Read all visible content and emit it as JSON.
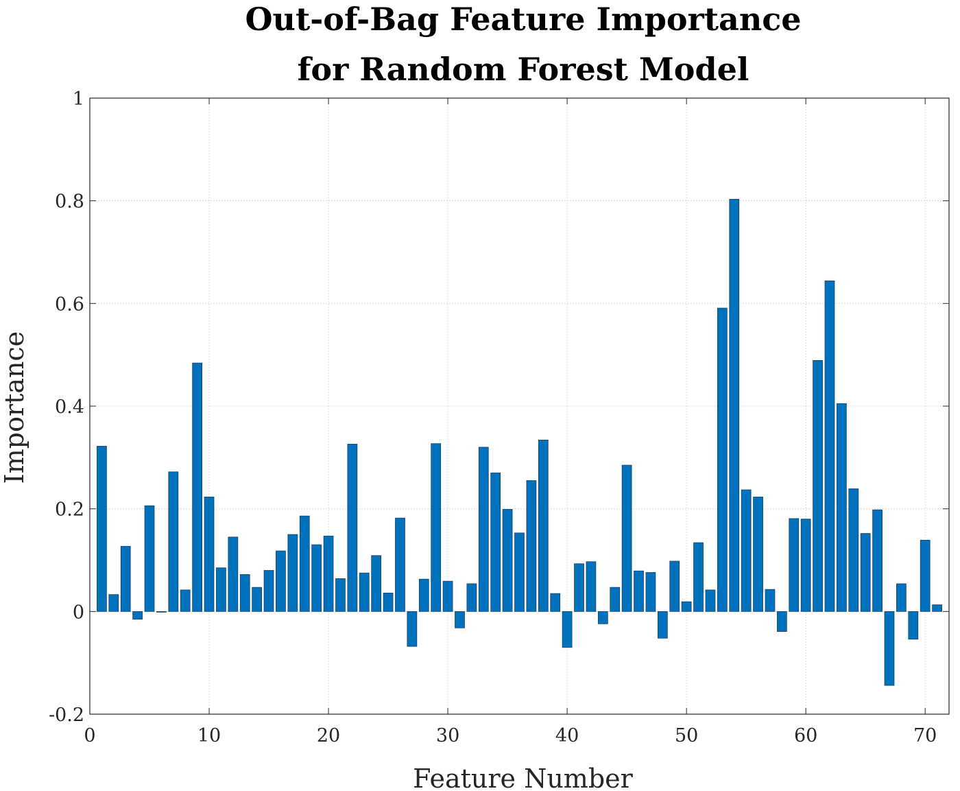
{
  "chart_data": {
    "type": "bar",
    "title": [
      "Out-of-Bag Feature Importance",
      "for Random Forest Model"
    ],
    "xlabel": "Feature Number",
    "ylabel": "Importance",
    "xlim": [
      0,
      72
    ],
    "ylim": [
      -0.2,
      1
    ],
    "xticks": [
      "0",
      "10",
      "20",
      "30",
      "40",
      "50",
      "60",
      "70"
    ],
    "yticks": [
      "-0.2",
      "0",
      "0.2",
      "0.4",
      "0.6",
      "0.8",
      "1"
    ],
    "grid": true,
    "bar_color": "#0072bd",
    "x": [
      1,
      2,
      3,
      4,
      5,
      6,
      7,
      8,
      9,
      10,
      11,
      12,
      13,
      14,
      15,
      16,
      17,
      18,
      19,
      20,
      21,
      22,
      23,
      24,
      25,
      26,
      27,
      28,
      29,
      30,
      31,
      32,
      33,
      34,
      35,
      36,
      37,
      38,
      39,
      40,
      41,
      42,
      43,
      44,
      45,
      46,
      47,
      48,
      49,
      50,
      51,
      52,
      53,
      54,
      55,
      56,
      57,
      58,
      59,
      60,
      61,
      62,
      63,
      64,
      65,
      66,
      67,
      68,
      69,
      70,
      71
    ],
    "values": [
      0.322,
      0.033,
      0.127,
      -0.015,
      0.206,
      -0.001,
      0.272,
      0.042,
      0.484,
      0.223,
      0.085,
      0.145,
      0.072,
      0.047,
      0.08,
      0.118,
      0.15,
      0.186,
      0.13,
      0.147,
      0.064,
      0.326,
      0.075,
      0.109,
      0.036,
      0.182,
      -0.068,
      0.063,
      0.327,
      0.059,
      -0.032,
      0.054,
      0.32,
      0.27,
      0.199,
      0.153,
      0.255,
      0.334,
      0.035,
      -0.07,
      0.093,
      0.097,
      -0.024,
      0.047,
      0.285,
      0.079,
      0.076,
      -0.052,
      0.098,
      0.019,
      0.134,
      0.042,
      0.591,
      0.803,
      0.237,
      0.223,
      0.043,
      -0.039,
      0.181,
      0.18,
      0.489,
      0.644,
      0.405,
      0.239,
      0.152,
      0.198,
      -0.144,
      0.054,
      -0.054,
      0.139,
      0.013
    ]
  }
}
